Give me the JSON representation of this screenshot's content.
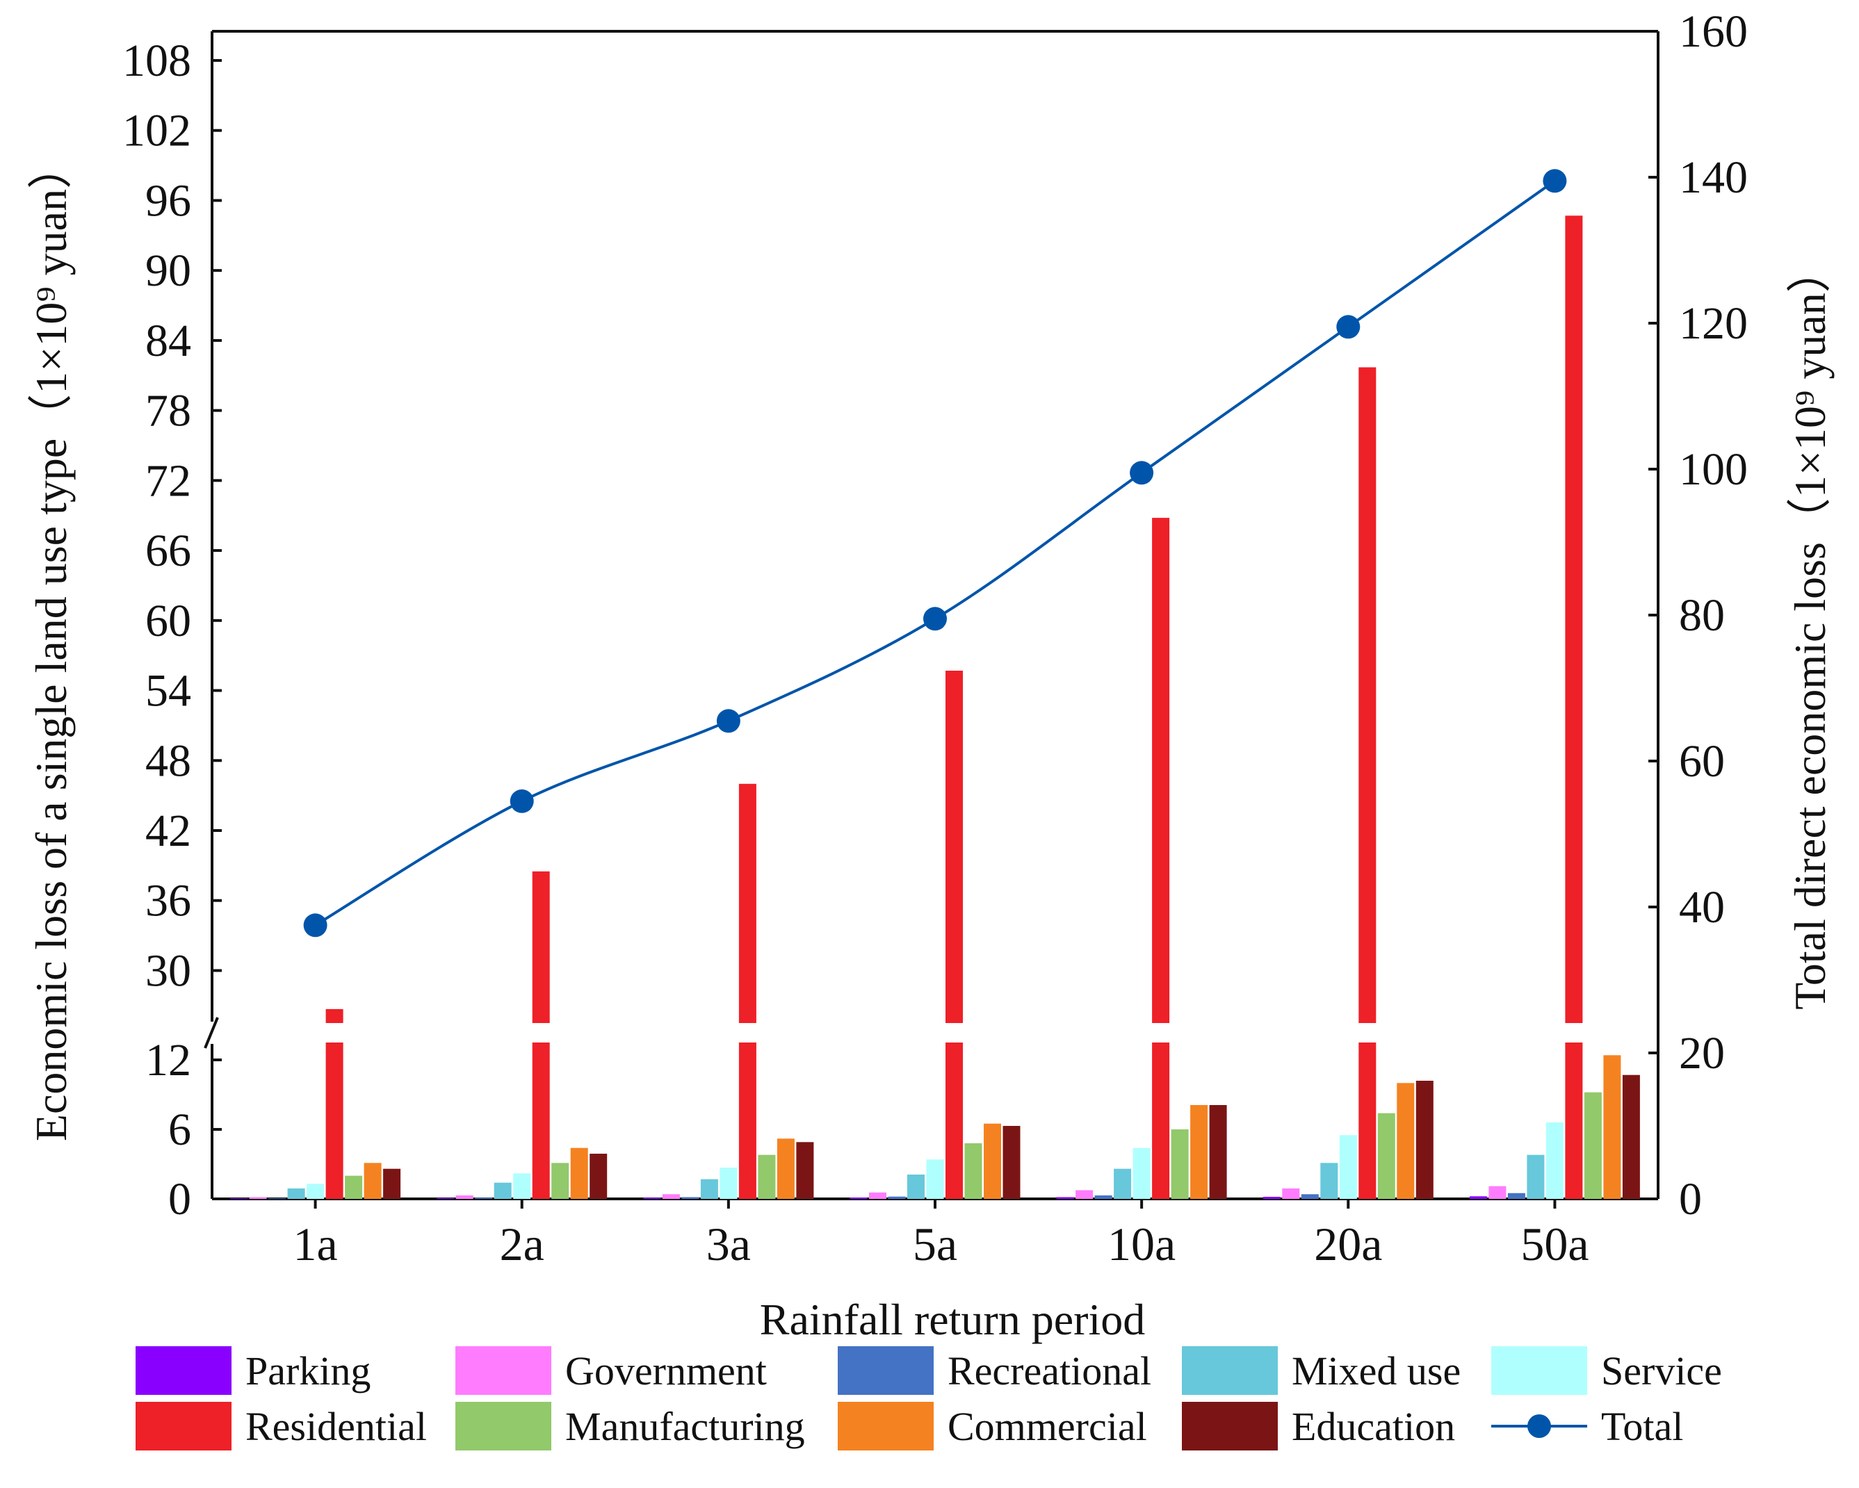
{
  "chart_data": {
    "type": "bar+line",
    "xlabel": "Rainfall return period",
    "ylabel_left": "Economic loss of a single land use type（1×10⁹ yuan）",
    "ylabel_right": "Total direct economic loss（1×10⁹ yuan）",
    "categories": [
      "1a",
      "2a",
      "3a",
      "5a",
      "10a",
      "20a",
      "50a"
    ],
    "left_axis": {
      "broken": true,
      "lower_range": [
        0,
        13.5
      ],
      "lower_ticks": [
        "0",
        "6",
        "12"
      ],
      "upper_range": [
        25.5,
        110.5
      ],
      "upper_ticks": [
        "30",
        "36",
        "42",
        "48",
        "54",
        "60",
        "66",
        "72",
        "78",
        "84",
        "90",
        "96",
        "102",
        "108"
      ]
    },
    "right_axis": {
      "range": [
        0,
        160
      ],
      "ticks": [
        "0",
        "20",
        "40",
        "60",
        "80",
        "100",
        "120",
        "140",
        "160"
      ]
    },
    "series": [
      {
        "name": "Parking",
        "color": "#8a00ff",
        "values": [
          0.05,
          0.08,
          0.1,
          0.12,
          0.15,
          0.18,
          0.22
        ]
      },
      {
        "name": "Government",
        "color": "#ff7cff",
        "values": [
          0.15,
          0.3,
          0.4,
          0.55,
          0.75,
          0.9,
          1.1
        ]
      },
      {
        "name": "Recreational",
        "color": "#4472c4",
        "values": [
          0.05,
          0.1,
          0.15,
          0.2,
          0.3,
          0.4,
          0.5
        ]
      },
      {
        "name": "Mixed use",
        "color": "#66c8da",
        "values": [
          0.9,
          1.4,
          1.7,
          2.1,
          2.6,
          3.1,
          3.8
        ]
      },
      {
        "name": "Service",
        "color": "#b0ffff",
        "values": [
          1.3,
          2.2,
          2.7,
          3.4,
          4.4,
          5.5,
          6.6
        ]
      },
      {
        "name": "Residential",
        "color": "#ee2028",
        "values": [
          26.7,
          38.5,
          46.0,
          55.7,
          68.8,
          81.7,
          94.7
        ]
      },
      {
        "name": "Manufacturing",
        "color": "#92c96b",
        "values": [
          2.0,
          3.1,
          3.8,
          4.8,
          6.0,
          7.4,
          9.2
        ]
      },
      {
        "name": "Commercial",
        "color": "#f58220",
        "values": [
          3.1,
          4.4,
          5.2,
          6.5,
          8.1,
          10.0,
          12.4
        ]
      },
      {
        "name": "Education",
        "color": "#7b1515",
        "values": [
          2.6,
          3.9,
          4.9,
          6.3,
          8.1,
          10.2,
          10.7
        ]
      }
    ],
    "line_series": {
      "name": "Total",
      "color": "#0055aa",
      "axis": "right",
      "values": [
        37.5,
        54.5,
        65.5,
        79.5,
        99.5,
        119.5,
        139.5
      ]
    },
    "legend_position": "bottom",
    "grid": false
  }
}
